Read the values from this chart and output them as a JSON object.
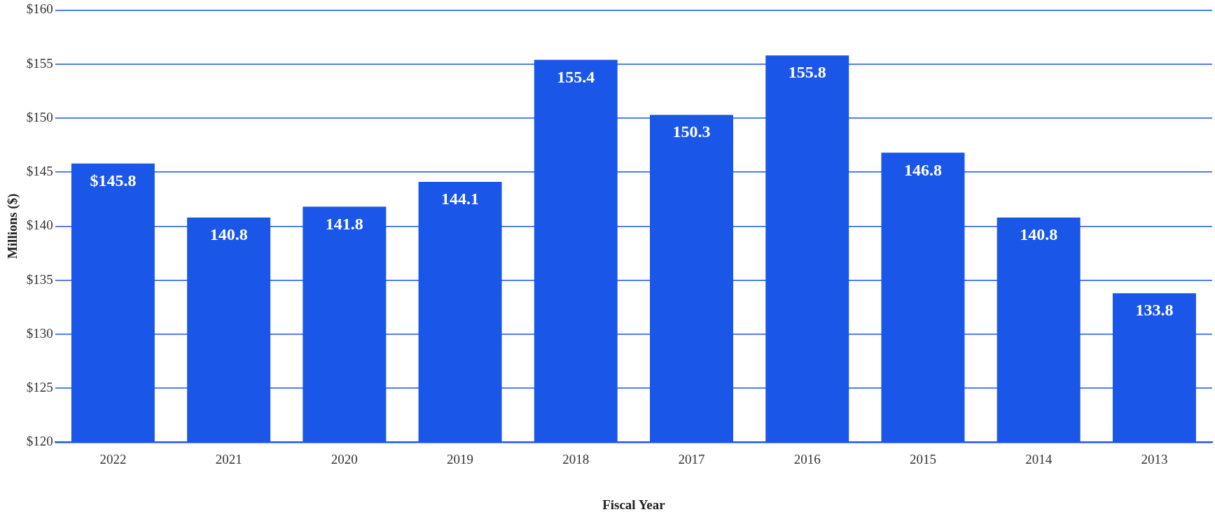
{
  "chart_data": {
    "type": "bar",
    "xlabel": "Fiscal Year",
    "ylabel": "Millions ($)",
    "categories": [
      "2022",
      "2021",
      "2020",
      "2019",
      "2018",
      "2017",
      "2016",
      "2015",
      "2014",
      "2013"
    ],
    "values": [
      145.8,
      140.8,
      141.8,
      144.1,
      155.4,
      150.3,
      155.8,
      146.8,
      140.8,
      133.8
    ],
    "value_labels": [
      "$145.8",
      "140.8",
      "141.8",
      "144.1",
      "155.4",
      "150.3",
      "155.8",
      "146.8",
      "140.8",
      "133.8"
    ],
    "color": "#1a56e8",
    "ylim": [
      120,
      160
    ],
    "yticks": [
      {
        "value": 120,
        "label": "$120"
      },
      {
        "value": 125,
        "label": "$125"
      },
      {
        "value": 130,
        "label": "$130"
      },
      {
        "value": 135,
        "label": "$135"
      },
      {
        "value": 140,
        "label": "$140"
      },
      {
        "value": 145,
        "label": "$145"
      },
      {
        "value": 150,
        "label": "$150"
      },
      {
        "value": 155,
        "label": "$155"
      },
      {
        "value": 160,
        "label": "$160"
      }
    ],
    "grid": "y",
    "legend": false
  }
}
